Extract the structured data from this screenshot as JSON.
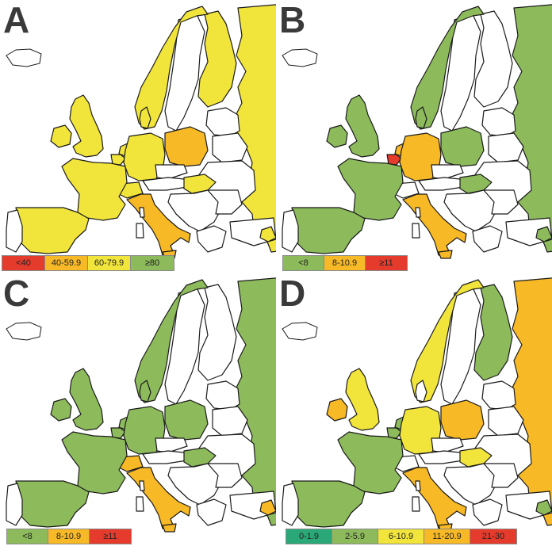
{
  "colors": {
    "red": "#e53b2c",
    "orange": "#f7b926",
    "yellow": "#f1e53c",
    "green": "#8dbb5c",
    "dark_green": "#2aa877",
    "none": "#ffffff",
    "border": "#1a1a1a"
  },
  "panels": [
    {
      "letter": "A",
      "legend": [
        {
          "label": "<40",
          "color": "red"
        },
        {
          "label": "40-59.9",
          "color": "orange"
        },
        {
          "label": "60-79.9",
          "color": "yellow"
        },
        {
          "label": "≥80",
          "color": "green"
        }
      ],
      "countries": {
        "uk": "yellow",
        "ireland": "yellow",
        "norway": "yellow",
        "sweden": "none",
        "finland": "yellow",
        "russia": "yellow",
        "denmark": "yellow",
        "netherlands": "yellow",
        "belgium": "yellow",
        "germany": "yellow",
        "poland": "orange",
        "france": "yellow",
        "spain": "yellow",
        "portugal": "none",
        "switzerland": "yellow",
        "austria": "none",
        "czechia": "none",
        "hungary": "yellow",
        "italy": "orange",
        "balkans": "none",
        "baltics": "none",
        "belarus": "none",
        "ukraine": "none",
        "romania": "none",
        "greece": "none",
        "turkey": "none",
        "cyprus": "yellow"
      }
    },
    {
      "letter": "B",
      "legend": [
        {
          "label": "<8",
          "color": "green"
        },
        {
          "label": "8-10.9",
          "color": "orange"
        },
        {
          "label": "≥11",
          "color": "red"
        }
      ],
      "countries": {
        "uk": "green",
        "ireland": "green",
        "norway": "green",
        "sweden": "none",
        "finland": "none",
        "russia": "green",
        "denmark": "green",
        "netherlands": "orange",
        "belgium": "red",
        "germany": "orange",
        "poland": "green",
        "france": "green",
        "spain": "green",
        "portugal": "none",
        "switzerland": "none",
        "austria": "none",
        "czechia": "none",
        "hungary": "green",
        "italy": "orange",
        "balkans": "none",
        "baltics": "none",
        "belarus": "none",
        "ukraine": "none",
        "romania": "none",
        "greece": "none",
        "turkey": "none",
        "cyprus": "green"
      }
    },
    {
      "letter": "C",
      "legend": [
        {
          "label": "<8",
          "color": "green"
        },
        {
          "label": "8-10.9",
          "color": "orange"
        },
        {
          "label": "≥11",
          "color": "red"
        }
      ],
      "countries": {
        "uk": "green",
        "ireland": "green",
        "norway": "green",
        "sweden": "none",
        "finland": "none",
        "russia": "green",
        "denmark": "green",
        "netherlands": "green",
        "belgium": "green",
        "germany": "green",
        "poland": "green",
        "france": "green",
        "spain": "green",
        "portugal": "none",
        "switzerland": "orange",
        "austria": "none",
        "czechia": "none",
        "hungary": "green",
        "italy": "orange",
        "balkans": "none",
        "baltics": "none",
        "belarus": "none",
        "ukraine": "none",
        "romania": "none",
        "greece": "none",
        "turkey": "none",
        "cyprus": "orange"
      }
    },
    {
      "letter": "D",
      "legend": [
        {
          "label": "0-1.9",
          "color": "dark_green"
        },
        {
          "label": "2-5.9",
          "color": "green"
        },
        {
          "label": "6-10.9",
          "color": "yellow"
        },
        {
          "label": "11-20.9",
          "color": "orange"
        },
        {
          "label": "21-30",
          "color": "red"
        }
      ],
      "countries": {
        "uk": "yellow",
        "ireland": "orange",
        "norway": "yellow",
        "sweden": "none",
        "finland": "green",
        "russia": "orange",
        "denmark": "none",
        "netherlands": "green",
        "belgium": "green",
        "germany": "yellow",
        "poland": "orange",
        "france": "green",
        "spain": "green",
        "portugal": "none",
        "switzerland": "none",
        "austria": "none",
        "czechia": "none",
        "hungary": "yellow",
        "italy": "orange",
        "balkans": "none",
        "baltics": "none",
        "belarus": "none",
        "ukraine": "none",
        "romania": "none",
        "greece": "none",
        "turkey": "none",
        "cyprus": "green"
      }
    }
  ]
}
